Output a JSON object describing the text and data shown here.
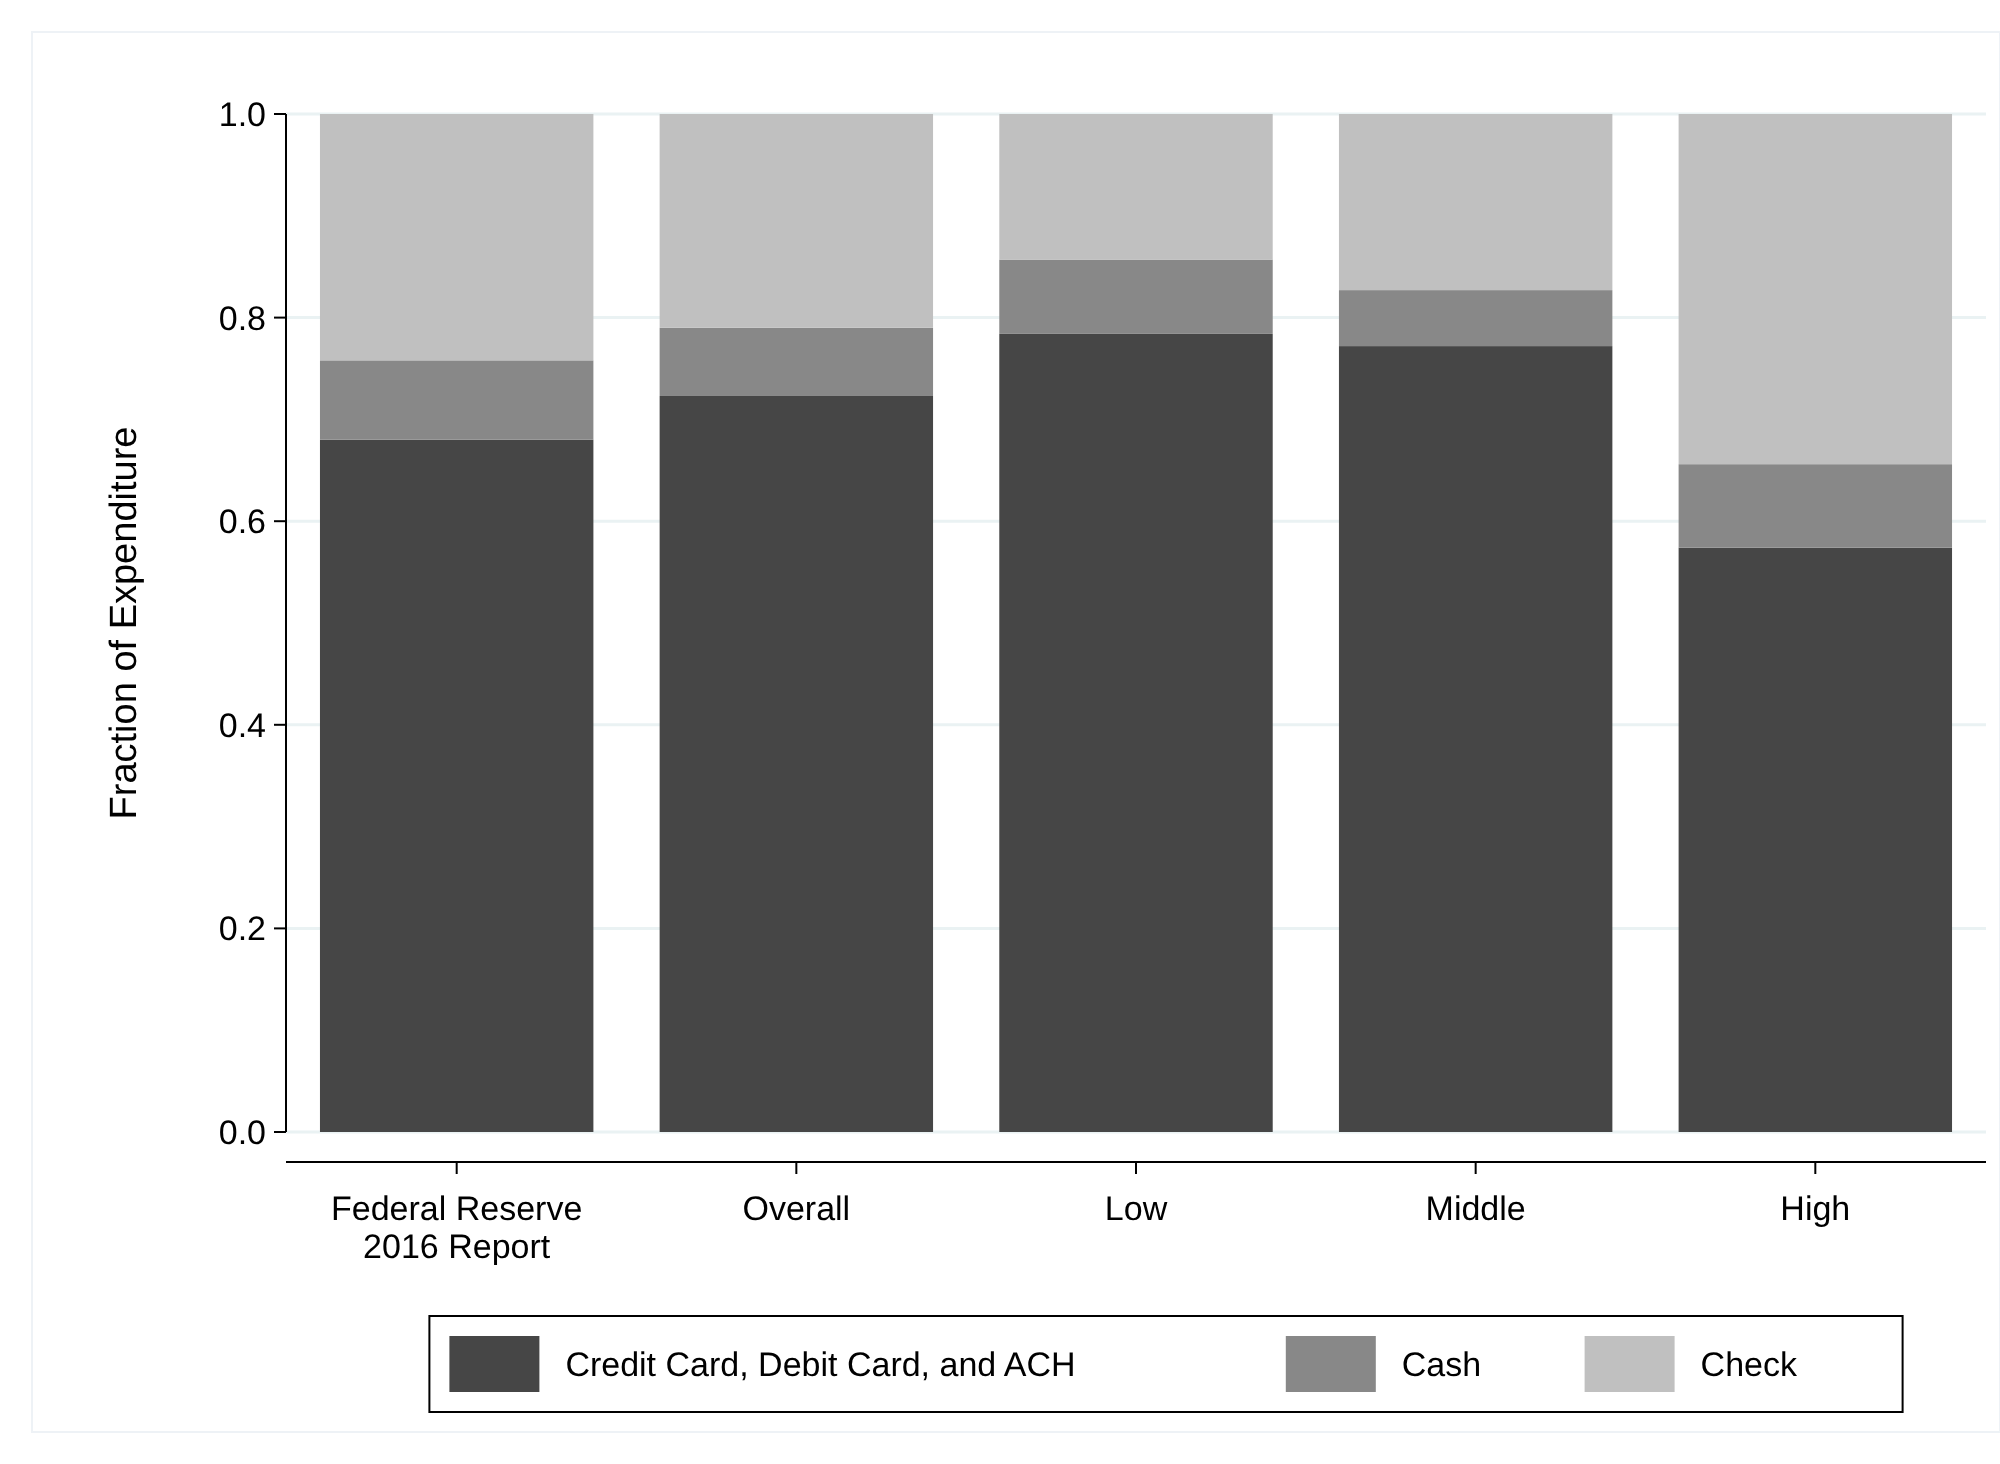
{
  "chart_data": {
    "type": "bar",
    "stacked": true,
    "ylabel": "Fraction of Expenditure",
    "categories": [
      "Federal Reserve\n2016 Report",
      "Overall",
      "Low",
      "Middle",
      "High"
    ],
    "series": [
      {
        "name": "Credit Card, Debit Card, and ACH",
        "color": "#464646",
        "values": [
          0.68,
          0.723,
          0.784,
          0.772,
          0.574
        ]
      },
      {
        "name": "Cash",
        "color": "#888888",
        "values": [
          0.078,
          0.067,
          0.073,
          0.055,
          0.082
        ]
      },
      {
        "name": "Check",
        "color": "#c0c0c0",
        "values": [
          0.242,
          0.21,
          0.143,
          0.173,
          0.344
        ]
      }
    ],
    "ylim": [
      0,
      1
    ],
    "yticks": [
      {
        "value": 0,
        "label": "0.0"
      },
      {
        "value": 0.2,
        "label": "0.2"
      },
      {
        "value": 0.4,
        "label": "0.4"
      },
      {
        "value": 0.6,
        "label": "0.6"
      },
      {
        "value": 0.8,
        "label": "0.8"
      },
      {
        "value": 1,
        "label": "1.0"
      }
    ],
    "grid": "y",
    "legend": "bottom"
  }
}
